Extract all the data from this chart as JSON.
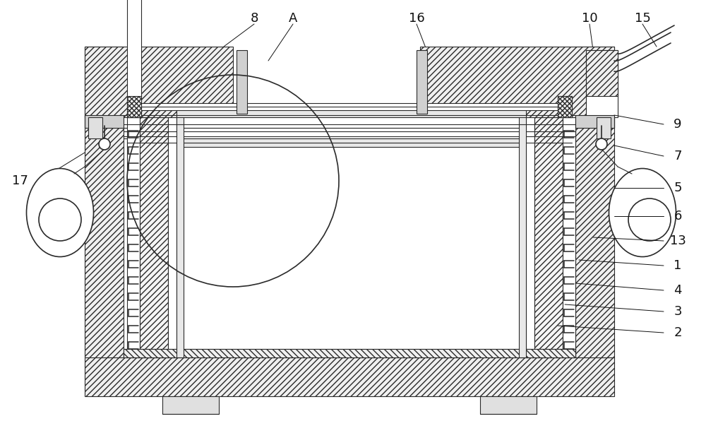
{
  "bg_color": "#ffffff",
  "line_color": "#2a2a2a",
  "label_color": "#111111",
  "fig_width": 10.0,
  "fig_height": 5.96,
  "dpi": 100
}
